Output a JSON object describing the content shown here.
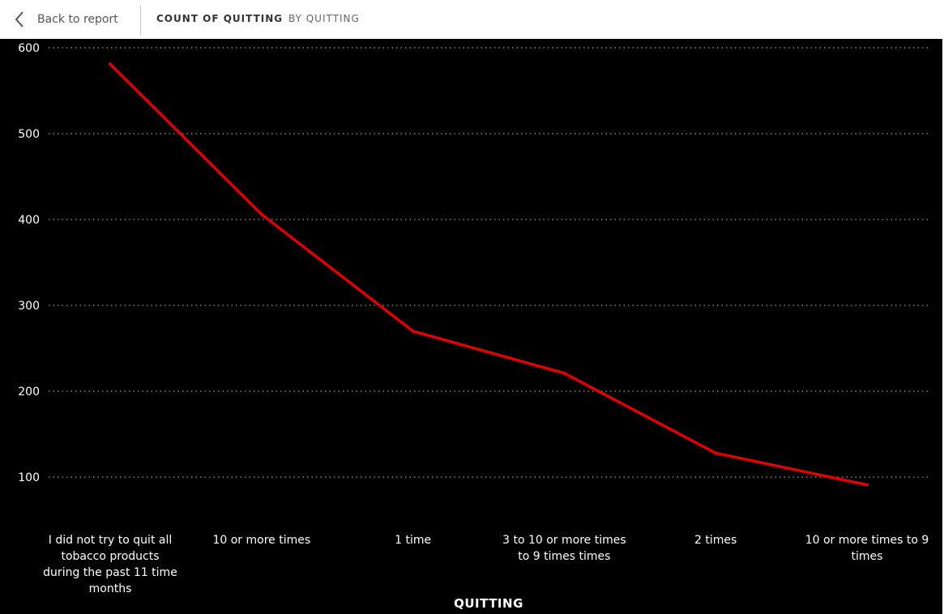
{
  "topbar": {
    "back_label": "Back to report",
    "title": "COUNT OF QUITTING",
    "subtitle": "BY QUITTING",
    "back_icon": "chevron-left-icon"
  },
  "colors": {
    "background": "#000000",
    "line": "#e00000",
    "grid": "#bbbbbb",
    "text": "#ffffff"
  },
  "chart_data": {
    "type": "line",
    "title": "COUNT OF QUITTING",
    "subtitle": "BY QUITTING",
    "xlabel": "QUITTING",
    "ylabel": "",
    "categories": [
      "I did not try to quit all tobacco products during the past 11 time months",
      "10 or more times",
      "1 time",
      "3 to 10 or more times to 9 times times",
      "2 times",
      "10 or more times to 9 times"
    ],
    "series": [
      {
        "values": [
          581,
          406,
          270,
          221,
          128,
          91
        ]
      }
    ],
    "yticks": [
      100,
      200,
      300,
      400,
      500,
      600
    ],
    "ylim": [
      0,
      600
    ],
    "grid": true,
    "grid_style": "dotted",
    "legend": "none"
  }
}
